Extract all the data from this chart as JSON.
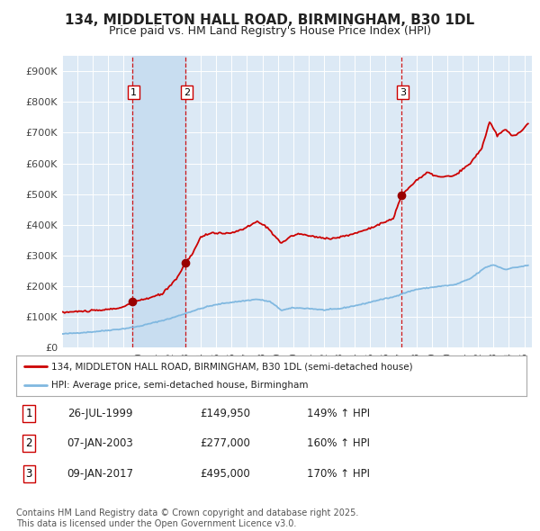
{
  "title": "134, MIDDLETON HALL ROAD, BIRMINGHAM, B30 1DL",
  "subtitle": "Price paid vs. HM Land Registry's House Price Index (HPI)",
  "title_fontsize": 11,
  "subtitle_fontsize": 9,
  "background_color": "#ffffff",
  "plot_bg_color": "#dce9f5",
  "grid_color": "#ffffff",
  "vspan_color": "#c8ddf0",
  "red_line_color": "#cc0000",
  "blue_line_color": "#80b8e0",
  "dot_color": "#990000",
  "vline_color": "#cc0000",
  "sale_dates": [
    "1999-07-26",
    "2003-01-07",
    "2017-01-09"
  ],
  "sale_prices": [
    149950,
    277000,
    495000
  ],
  "sale_labels": [
    "1",
    "2",
    "3"
  ],
  "sale_price_labels": [
    "£149,950",
    "£277,000",
    "£495,000"
  ],
  "sale_pct": [
    "149% ↑ HPI",
    "160% ↑ HPI",
    "170% ↑ HPI"
  ],
  "sale_date_labels": [
    "26-JUL-1999",
    "07-JAN-2003",
    "09-JAN-2017"
  ],
  "legend_line1": "134, MIDDLETON HALL ROAD, BIRMINGHAM, B30 1DL (semi-detached house)",
  "legend_line2": "HPI: Average price, semi-detached house, Birmingham",
  "footer": "Contains HM Land Registry data © Crown copyright and database right 2025.\nThis data is licensed under the Open Government Licence v3.0.",
  "ylim": [
    0,
    950000
  ],
  "yticks": [
    0,
    100000,
    200000,
    300000,
    400000,
    500000,
    600000,
    700000,
    800000,
    900000
  ],
  "ytick_labels": [
    "£0",
    "£100K",
    "£200K",
    "£300K",
    "£400K",
    "£500K",
    "£600K",
    "£700K",
    "£800K",
    "£900K"
  ],
  "xstart_year": 1995,
  "xend_year": 2025,
  "hpi_keypoints_x": [
    1995.0,
    1997.0,
    1999.0,
    2000.0,
    2002.0,
    2003.5,
    2004.5,
    2005.5,
    2007.67,
    2008.5,
    2009.25,
    2010.0,
    2011.0,
    2012.0,
    2013.0,
    2014.5,
    2015.5,
    2016.5,
    2017.0,
    2018.0,
    2019.5,
    2020.5,
    2021.5,
    2022.5,
    2023.0,
    2023.75,
    2024.5,
    2025.25
  ],
  "hpi_keypoints_y": [
    45000,
    52000,
    62000,
    70000,
    95000,
    120000,
    135000,
    145000,
    158000,
    150000,
    122000,
    130000,
    128000,
    123000,
    127000,
    142000,
    155000,
    165000,
    175000,
    190000,
    200000,
    205000,
    225000,
    262000,
    270000,
    255000,
    262000,
    268000
  ],
  "prop_keypoints_x": [
    1995.0,
    1996.0,
    1997.5,
    1998.5,
    1999.0,
    1999.57,
    2000.5,
    2001.5,
    2002.5,
    2003.02,
    2003.5,
    2004.0,
    2004.75,
    2005.5,
    2006.5,
    2007.67,
    2008.25,
    2009.25,
    2009.92,
    2010.5,
    2011.5,
    2012.5,
    2013.5,
    2014.5,
    2015.5,
    2016.5,
    2017.02,
    2017.5,
    2018.0,
    2018.75,
    2019.5,
    2020.5,
    2021.5,
    2022.25,
    2022.75,
    2023.25,
    2023.75,
    2024.25,
    2024.75,
    2025.25
  ],
  "prop_keypoints_y": [
    115000,
    118000,
    122000,
    128000,
    133000,
    149950,
    160000,
    175000,
    230000,
    277000,
    310000,
    360000,
    375000,
    370000,
    380000,
    410000,
    395000,
    340000,
    365000,
    370000,
    360000,
    355000,
    365000,
    380000,
    400000,
    420000,
    495000,
    520000,
    545000,
    570000,
    555000,
    560000,
    600000,
    650000,
    735000,
    690000,
    710000,
    690000,
    700000,
    730000
  ]
}
